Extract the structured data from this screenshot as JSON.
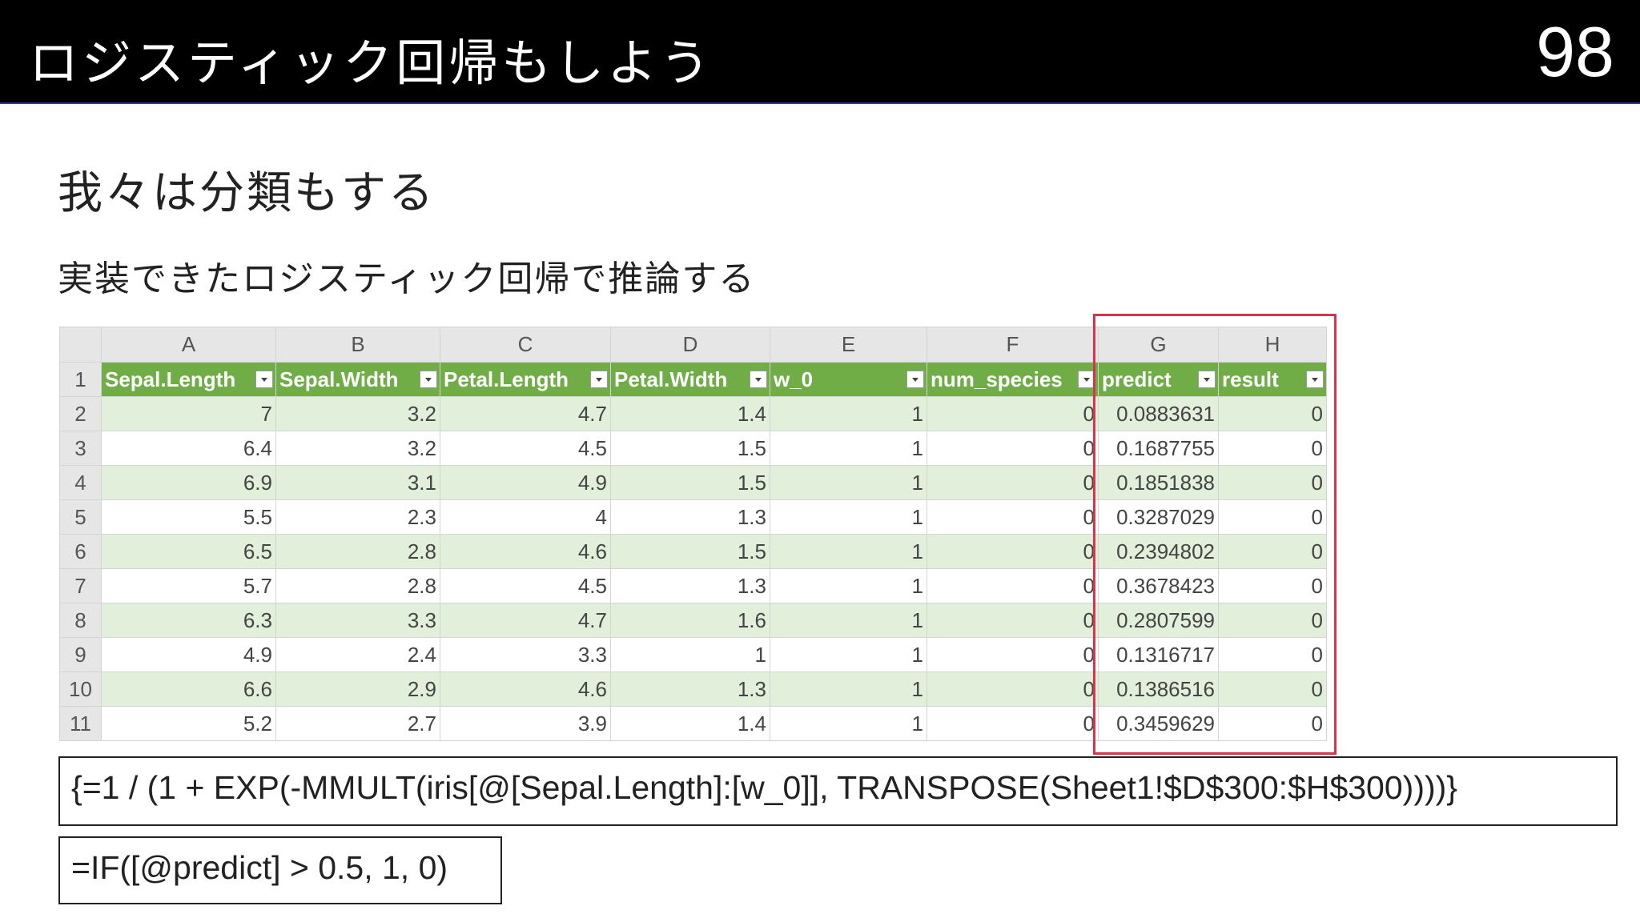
{
  "header": {
    "title": "ロジスティック回帰もしよう",
    "page_number": "98"
  },
  "heading": "我々は分類もする",
  "subheading": "実装できたロジスティック回帰で推論する",
  "table": {
    "column_letters": [
      "A",
      "B",
      "C",
      "D",
      "E",
      "F",
      "G",
      "H"
    ],
    "header_row_number": 1,
    "headers": [
      "Sepal.Length",
      "Sepal.Width",
      "Petal.Length",
      "Petal.Width",
      "w_0",
      "num_species",
      "predict",
      "result"
    ],
    "rows": [
      [
        2,
        7,
        3.2,
        4.7,
        1.4,
        1,
        0,
        0.0883631,
        0
      ],
      [
        3,
        6.4,
        3.2,
        4.5,
        1.5,
        1,
        0,
        0.1687755,
        0
      ],
      [
        4,
        6.9,
        3.1,
        4.9,
        1.5,
        1,
        0,
        0.1851838,
        0
      ],
      [
        5,
        5.5,
        2.3,
        4,
        1.3,
        1,
        0,
        0.3287029,
        0
      ],
      [
        6,
        6.5,
        2.8,
        4.6,
        1.5,
        1,
        0,
        0.2394802,
        0
      ],
      [
        7,
        5.7,
        2.8,
        4.5,
        1.3,
        1,
        0,
        0.3678423,
        0
      ],
      [
        8,
        6.3,
        3.3,
        4.7,
        1.6,
        1,
        0,
        0.2807599,
        0
      ],
      [
        9,
        4.9,
        2.4,
        3.3,
        1,
        1,
        0,
        0.1316717,
        0
      ],
      [
        10,
        6.6,
        2.9,
        4.6,
        1.3,
        1,
        0,
        0.1386516,
        0
      ],
      [
        11,
        5.2,
        2.7,
        3.9,
        1.4,
        1,
        0,
        0.3459629,
        0
      ]
    ]
  },
  "formulas": [
    "{=1 / (1 + EXP(-MMULT(iris[@[Sepal.Length]:[w_0]], TRANSPOSE(Sheet1!$D$300:$H$300))))}",
    "=IF([@predict] > 0.5, 1, 0)"
  ]
}
